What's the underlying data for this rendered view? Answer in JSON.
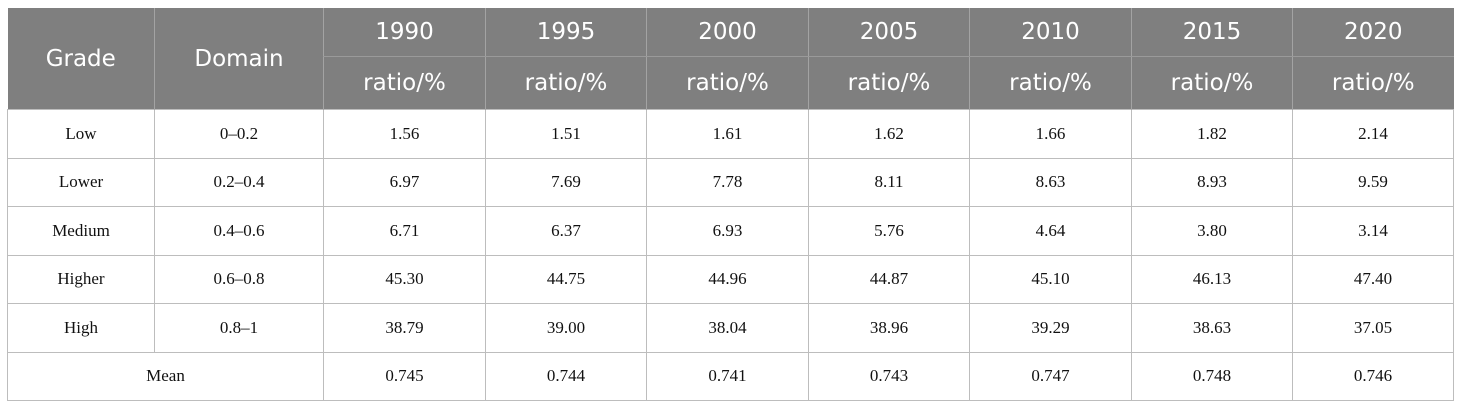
{
  "header": {
    "grade": "Grade",
    "domain": "Domain",
    "years": [
      "1990",
      "1995",
      "2000",
      "2005",
      "2010",
      "2015",
      "2020"
    ],
    "unit": "ratio/%"
  },
  "rows": [
    {
      "grade": "Low",
      "domain": "0–0.2",
      "values": [
        "1.56",
        "1.51",
        "1.61",
        "1.62",
        "1.66",
        "1.82",
        "2.14"
      ]
    },
    {
      "grade": "Lower",
      "domain": "0.2–0.4",
      "values": [
        "6.97",
        "7.69",
        "7.78",
        "8.11",
        "8.63",
        "8.93",
        "9.59"
      ]
    },
    {
      "grade": "Medium",
      "domain": "0.4–0.6",
      "values": [
        "6.71",
        "6.37",
        "6.93",
        "5.76",
        "4.64",
        "3.80",
        "3.14"
      ]
    },
    {
      "grade": "Higher",
      "domain": "0.6–0.8",
      "values": [
        "45.30",
        "44.75",
        "44.96",
        "44.87",
        "45.10",
        "46.13",
        "47.40"
      ]
    },
    {
      "grade": "High",
      "domain": "0.8–1",
      "values": [
        "38.79",
        "39.00",
        "38.04",
        "38.96",
        "39.29",
        "38.63",
        "37.05"
      ]
    }
  ],
  "mean": {
    "label": "Mean",
    "values": [
      "0.745",
      "0.744",
      "0.741",
      "0.743",
      "0.747",
      "0.748",
      "0.746"
    ]
  }
}
